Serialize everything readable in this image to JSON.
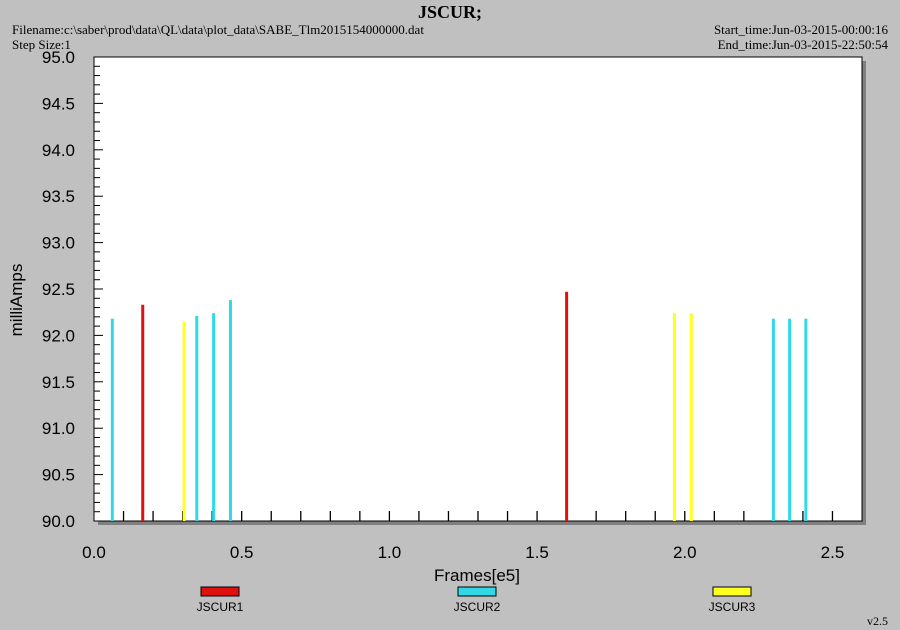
{
  "header": {
    "title": "JSCUR;",
    "filename": "Filename:c:\\saber\\prod\\data\\QL\\data\\plot_data\\SABE_Tlm2015154000000.dat",
    "step_size": "Step Size:1",
    "start_time": "Start_time:Jun-03-2015-00:00:16",
    "end_time": "End_time:Jun-03-2015-22:50:54"
  },
  "version": "v2.5",
  "chart_data": {
    "type": "bar",
    "xlabel": "Frames[e5]",
    "ylabel": "milliAmps",
    "xlim": [
      0,
      2.6
    ],
    "ylim": [
      90.0,
      95.0
    ],
    "x_ticks": [
      "0.0",
      "0.5",
      "1.0",
      "1.5",
      "2.0",
      "2.5"
    ],
    "y_ticks": [
      "90.0",
      "90.5",
      "91.0",
      "91.5",
      "92.0",
      "92.5",
      "93.0",
      "93.5",
      "94.0",
      "94.5",
      "95.0"
    ],
    "grid": false,
    "legend_position": "bottom",
    "colors": {
      "plot_bg": "#ffffff",
      "frame_bg": "#c0c0c0"
    },
    "series": [
      {
        "name": "JSCUR1",
        "color": "#e01010",
        "points": [
          {
            "x": 0.165,
            "y": 92.33
          },
          {
            "x": 1.6,
            "y": 92.47
          }
        ]
      },
      {
        "name": "JSCUR2",
        "color": "#30d8e8",
        "points": [
          {
            "x": 0.062,
            "y": 92.18
          },
          {
            "x": 0.348,
            "y": 92.21
          },
          {
            "x": 0.405,
            "y": 92.24
          },
          {
            "x": 0.462,
            "y": 92.38
          },
          {
            "x": 2.3,
            "y": 92.18
          },
          {
            "x": 2.355,
            "y": 92.18
          },
          {
            "x": 2.41,
            "y": 92.18
          }
        ]
      },
      {
        "name": "JSCUR3",
        "color": "#ffff20",
        "points": [
          {
            "x": 0.305,
            "y": 92.15
          },
          {
            "x": 1.965,
            "y": 92.24
          },
          {
            "x": 2.022,
            "y": 92.24
          }
        ]
      }
    ]
  }
}
